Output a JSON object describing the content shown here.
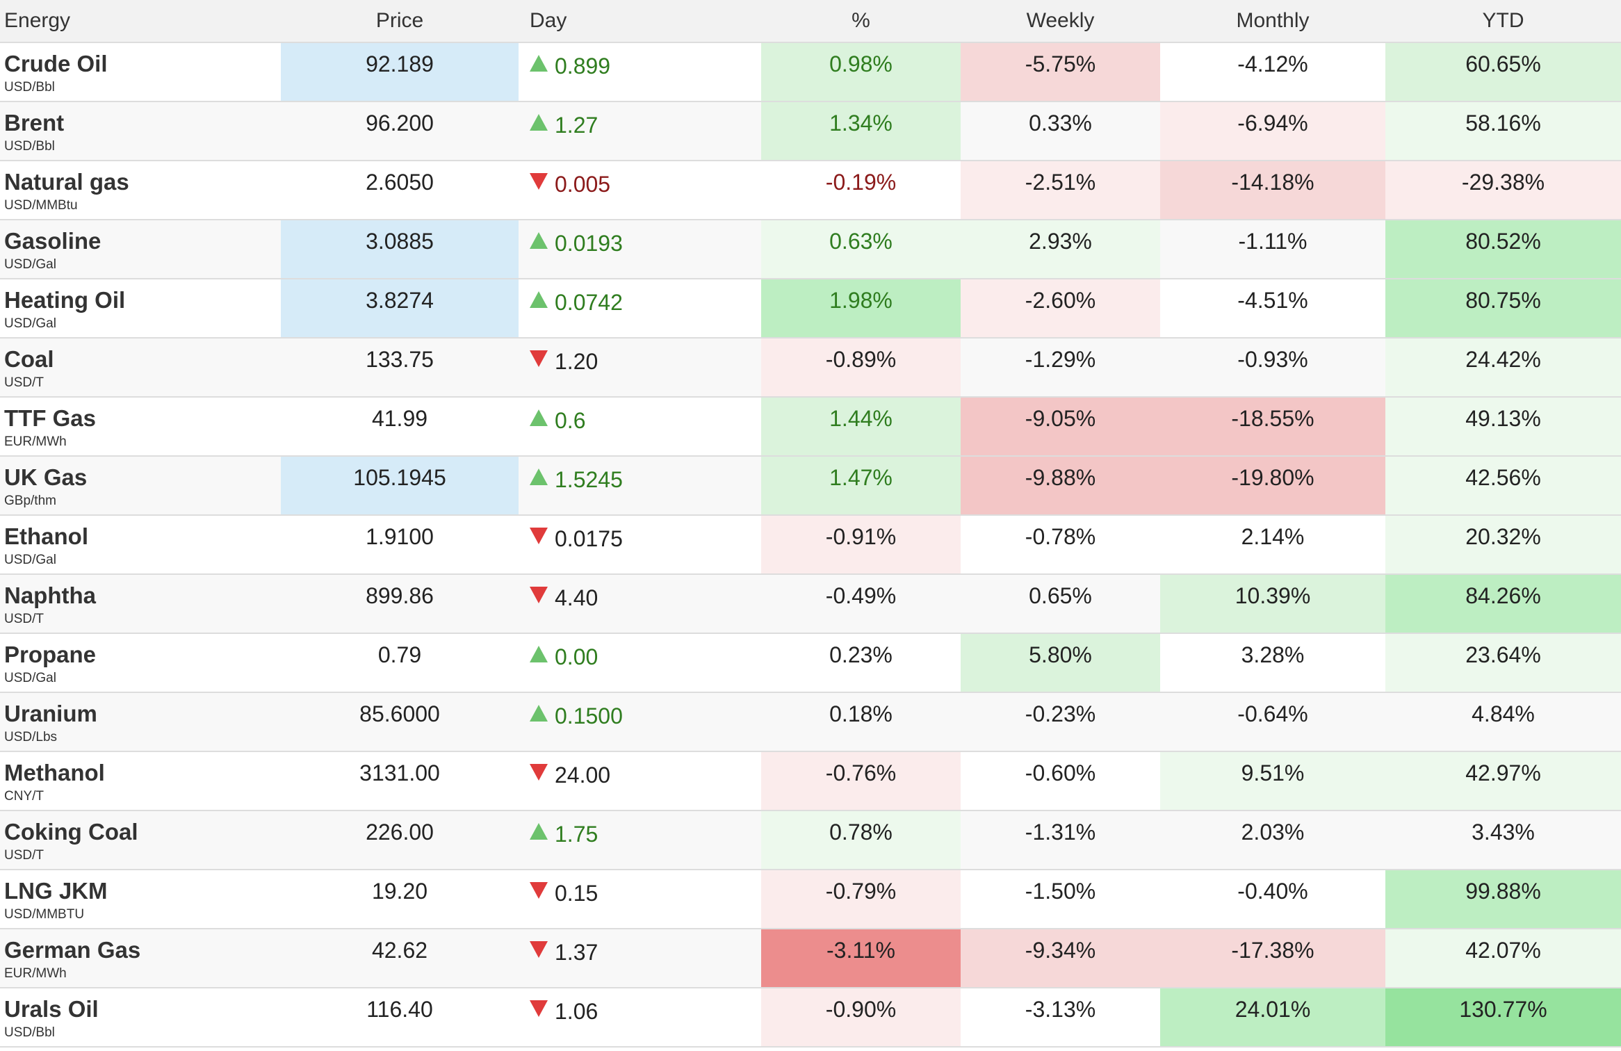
{
  "headers": {
    "name": "Energy",
    "price": "Price",
    "day": "Day",
    "pct": "%",
    "weekly": "Weekly",
    "monthly": "Monthly",
    "ytd": "YTD"
  },
  "colors": {
    "up_triangle": "#6cc26c",
    "down_triangle": "#e03b3b",
    "positive_text": "#2f7d1f",
    "negative_text": "#8b1a1a",
    "price_highlight": "#d6ebf8"
  },
  "rows": [
    {
      "name": "Crude Oil",
      "unit": "USD/Bbl",
      "price": "92.189",
      "day": "0.899",
      "dir": "up",
      "pct": "0.98%",
      "weekly": "-5.75%",
      "monthly": "-4.12%",
      "ytd": "60.65%"
    },
    {
      "name": "Brent",
      "unit": "USD/Bbl",
      "price": "96.200",
      "day": "1.27",
      "dir": "up",
      "pct": "1.34%",
      "weekly": "0.33%",
      "monthly": "-6.94%",
      "ytd": "58.16%"
    },
    {
      "name": "Natural gas",
      "unit": "USD/MMBtu",
      "price": "2.6050",
      "day": "0.005",
      "dir": "down",
      "pct": "-0.19%",
      "weekly": "-2.51%",
      "monthly": "-14.18%",
      "ytd": "-29.38%"
    },
    {
      "name": "Gasoline",
      "unit": "USD/Gal",
      "price": "3.0885",
      "day": "0.0193",
      "dir": "up",
      "pct": "0.63%",
      "weekly": "2.93%",
      "monthly": "-1.11%",
      "ytd": "80.52%"
    },
    {
      "name": "Heating Oil",
      "unit": "USD/Gal",
      "price": "3.8274",
      "day": "0.0742",
      "dir": "up",
      "pct": "1.98%",
      "weekly": "-2.60%",
      "monthly": "-4.51%",
      "ytd": "80.75%"
    },
    {
      "name": "Coal",
      "unit": "USD/T",
      "price": "133.75",
      "day": "1.20",
      "dir": "down",
      "pct": "-0.89%",
      "weekly": "-1.29%",
      "monthly": "-0.93%",
      "ytd": "24.42%"
    },
    {
      "name": "TTF Gas",
      "unit": "EUR/MWh",
      "price": "41.99",
      "day": "0.6",
      "dir": "up",
      "pct": "1.44%",
      "weekly": "-9.05%",
      "monthly": "-18.55%",
      "ytd": "49.13%"
    },
    {
      "name": "UK Gas",
      "unit": "GBp/thm",
      "price": "105.1945",
      "day": "1.5245",
      "dir": "up",
      "pct": "1.47%",
      "weekly": "-9.88%",
      "monthly": "-19.80%",
      "ytd": "42.56%"
    },
    {
      "name": "Ethanol",
      "unit": "USD/Gal",
      "price": "1.9100",
      "day": "0.0175",
      "dir": "down",
      "pct": "-0.91%",
      "weekly": "-0.78%",
      "monthly": "2.14%",
      "ytd": "20.32%"
    },
    {
      "name": "Naphtha",
      "unit": "USD/T",
      "price": "899.86",
      "day": "4.40",
      "dir": "down",
      "pct": "-0.49%",
      "weekly": "0.65%",
      "monthly": "10.39%",
      "ytd": "84.26%"
    },
    {
      "name": "Propane",
      "unit": "USD/Gal",
      "price": "0.79",
      "day": "0.00",
      "dir": "up",
      "pct": "0.23%",
      "weekly": "5.80%",
      "monthly": "3.28%",
      "ytd": "23.64%"
    },
    {
      "name": "Uranium",
      "unit": "USD/Lbs",
      "price": "85.6000",
      "day": "0.1500",
      "dir": "up",
      "pct": "0.18%",
      "weekly": "-0.23%",
      "monthly": "-0.64%",
      "ytd": "4.84%"
    },
    {
      "name": "Methanol",
      "unit": "CNY/T",
      "price": "3131.00",
      "day": "24.00",
      "dir": "down",
      "pct": "-0.76%",
      "weekly": "-0.60%",
      "monthly": "9.51%",
      "ytd": "42.97%"
    },
    {
      "name": "Coking Coal",
      "unit": "USD/T",
      "price": "226.00",
      "day": "1.75",
      "dir": "up",
      "pct": "0.78%",
      "weekly": "-1.31%",
      "monthly": "2.03%",
      "ytd": "3.43%"
    },
    {
      "name": "LNG JKM",
      "unit": "USD/MMBTU",
      "price": "19.20",
      "day": "0.15",
      "dir": "down",
      "pct": "-0.79%",
      "weekly": "-1.50%",
      "monthly": "-0.40%",
      "ytd": "99.88%"
    },
    {
      "name": "German Gas",
      "unit": "EUR/MWh",
      "price": "42.62",
      "day": "1.37",
      "dir": "down",
      "pct": "-3.11%",
      "weekly": "-9.34%",
      "monthly": "-17.38%",
      "ytd": "42.07%"
    },
    {
      "name": "Urals Oil",
      "unit": "USD/Bbl",
      "price": "116.40",
      "day": "1.06",
      "dir": "down",
      "pct": "-0.90%",
      "weekly": "-3.13%",
      "monthly": "24.01%",
      "ytd": "130.77%"
    }
  ]
}
